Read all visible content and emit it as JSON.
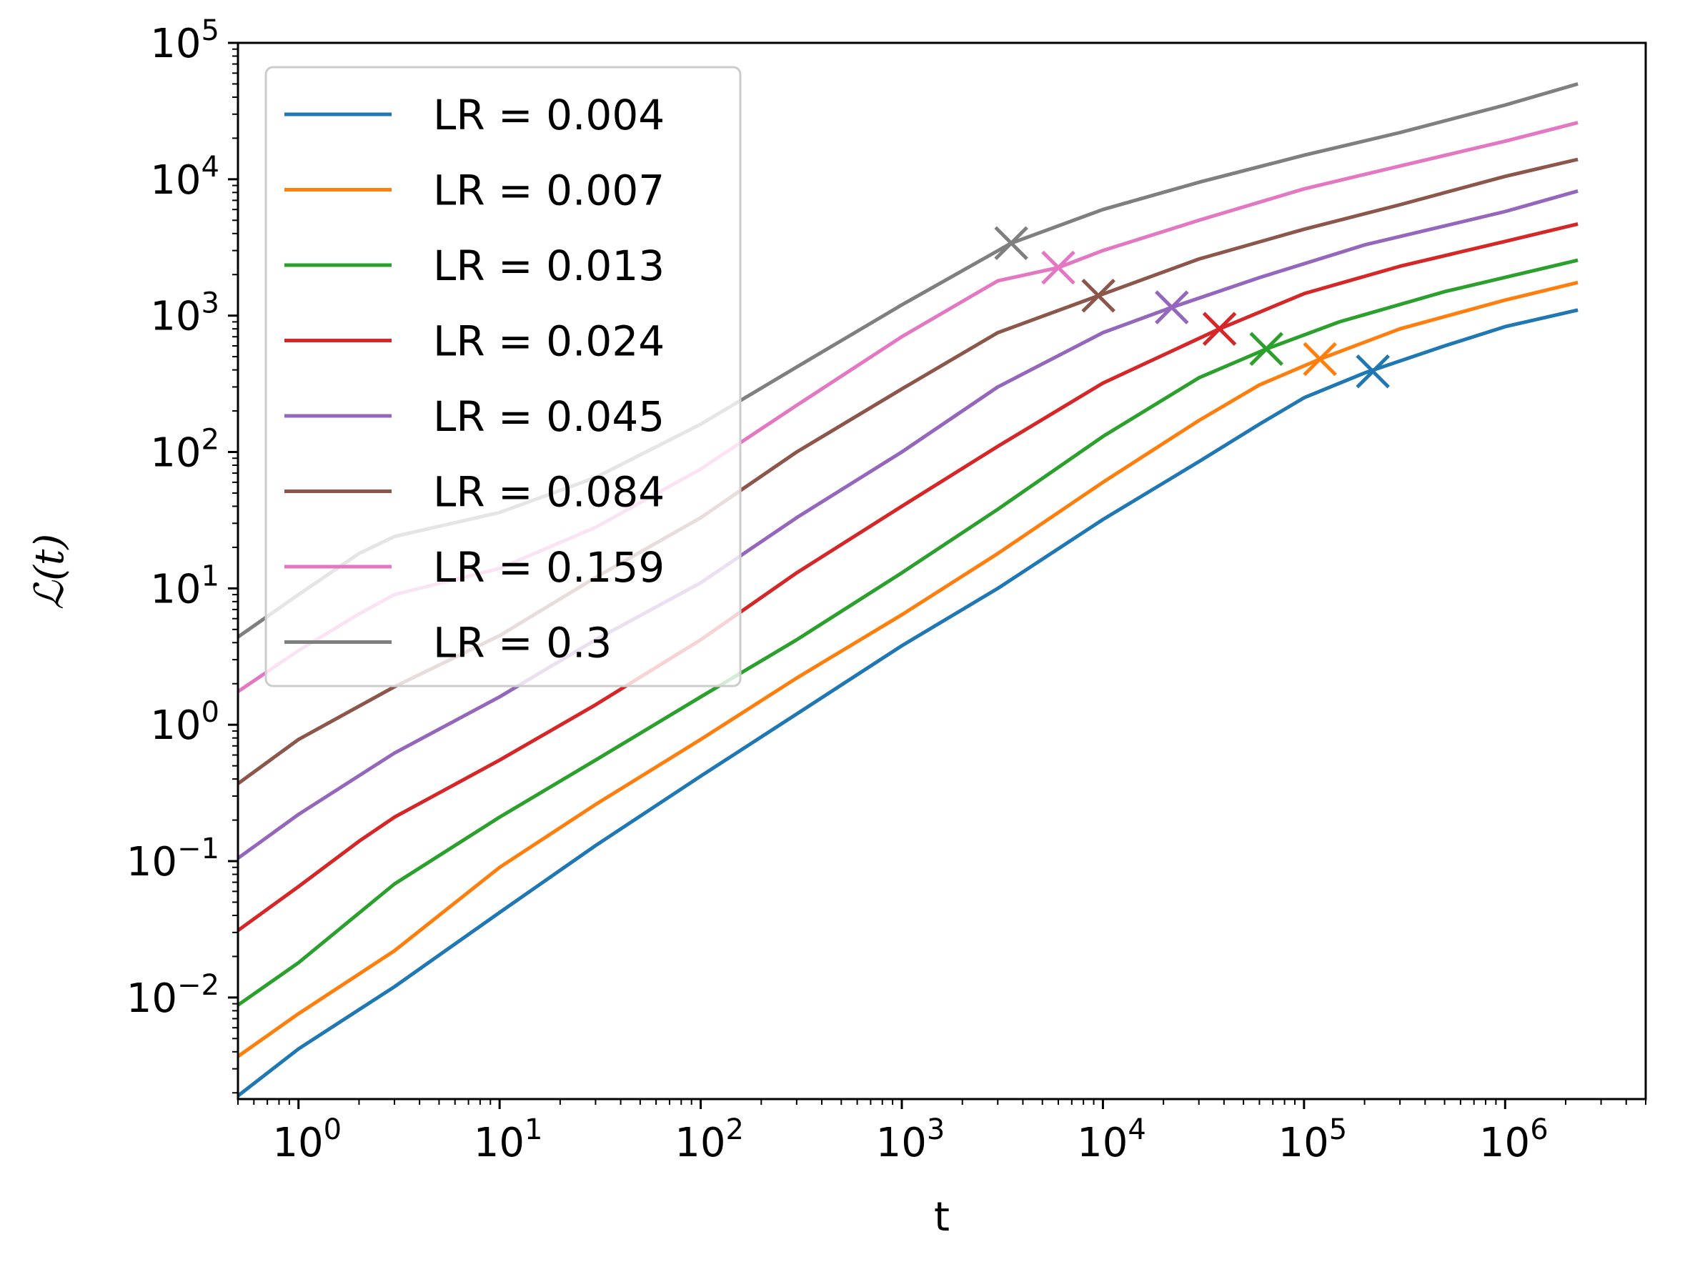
{
  "chart_data": {
    "type": "line",
    "title": "",
    "xlabel": "t",
    "ylabel": "ℒ(t)",
    "xscale": "log",
    "yscale": "log",
    "xlim": [
      0.5,
      5000000
    ],
    "ylim": [
      0.0018,
      100000
    ],
    "grid": false,
    "legend_position": "top-left",
    "x_ticks": [
      {
        "value": 1,
        "base": "10",
        "exp": "0"
      },
      {
        "value": 10,
        "base": "10",
        "exp": "1"
      },
      {
        "value": 100,
        "base": "10",
        "exp": "2"
      },
      {
        "value": 1000,
        "base": "10",
        "exp": "3"
      },
      {
        "value": 10000,
        "base": "10",
        "exp": "4"
      },
      {
        "value": 100000,
        "base": "10",
        "exp": "5"
      },
      {
        "value": 1000000,
        "base": "10",
        "exp": "6"
      }
    ],
    "y_ticks": [
      {
        "value": 0.01,
        "base": "10",
        "exp": "−2"
      },
      {
        "value": 0.1,
        "base": "10",
        "exp": "−1"
      },
      {
        "value": 1,
        "base": "10",
        "exp": "0"
      },
      {
        "value": 10,
        "base": "10",
        "exp": "1"
      },
      {
        "value": 100,
        "base": "10",
        "exp": "2"
      },
      {
        "value": 1000,
        "base": "10",
        "exp": "3"
      },
      {
        "value": 10000,
        "base": "10",
        "exp": "4"
      },
      {
        "value": 100000,
        "base": "10",
        "exp": "5"
      }
    ],
    "series": [
      {
        "name": "LR = 0.004",
        "color": "#1f77b4",
        "x": [
          0.5,
          1,
          3,
          10,
          30,
          100,
          300,
          1000,
          3000,
          10000,
          30000,
          60000,
          100000,
          200000,
          500000,
          1000000,
          2300000
        ],
        "y": [
          0.0019,
          0.0042,
          0.012,
          0.042,
          0.13,
          0.42,
          1.2,
          3.8,
          10,
          32,
          85,
          160,
          250,
          380,
          600,
          830,
          1100
        ],
        "marker": {
          "x": 220000,
          "y": 390
        }
      },
      {
        "name": "LR = 0.007",
        "color": "#ff7f0e",
        "x": [
          0.5,
          1,
          3,
          10,
          30,
          100,
          300,
          1000,
          3000,
          10000,
          30000,
          60000,
          120000,
          300000,
          1000000,
          2300000
        ],
        "y": [
          0.0037,
          0.0076,
          0.022,
          0.09,
          0.26,
          0.78,
          2.2,
          6.4,
          18,
          60,
          170,
          310,
          480,
          800,
          1300,
          1750
        ],
        "marker": {
          "x": 120000,
          "y": 480
        }
      },
      {
        "name": "LR = 0.013",
        "color": "#2ca02c",
        "x": [
          0.5,
          1,
          3,
          10,
          30,
          100,
          300,
          1000,
          3000,
          10000,
          30000,
          65000,
          150000,
          500000,
          2300000
        ],
        "y": [
          0.0088,
          0.018,
          0.068,
          0.21,
          0.55,
          1.6,
          4.2,
          13,
          38,
          130,
          350,
          570,
          900,
          1500,
          2550
        ],
        "marker": {
          "x": 65000,
          "y": 570
        }
      },
      {
        "name": "LR = 0.024",
        "color": "#d62728",
        "x": [
          0.5,
          1,
          2,
          3,
          10,
          30,
          100,
          300,
          1000,
          3000,
          10000,
          38000,
          100000,
          300000,
          1000000,
          2300000
        ],
        "y": [
          0.031,
          0.065,
          0.14,
          0.21,
          0.55,
          1.4,
          4.2,
          13,
          40,
          110,
          320,
          800,
          1450,
          2300,
          3500,
          4700
        ],
        "marker": {
          "x": 38000,
          "y": 800
        }
      },
      {
        "name": "LR = 0.045",
        "color": "#9467bd",
        "x": [
          0.5,
          1,
          3,
          10,
          30,
          100,
          300,
          1000,
          3000,
          10000,
          22000,
          60000,
          200000,
          1000000,
          2300000
        ],
        "y": [
          0.105,
          0.22,
          0.62,
          1.6,
          4.2,
          11,
          33,
          100,
          300,
          750,
          1150,
          1900,
          3300,
          5800,
          8200
        ],
        "marker": {
          "x": 22000,
          "y": 1150
        }
      },
      {
        "name": "LR = 0.084",
        "color": "#8c564b",
        "x": [
          0.5,
          1,
          3,
          10,
          30,
          100,
          300,
          1000,
          3000,
          9500,
          30000,
          100000,
          300000,
          1000000,
          2300000
        ],
        "y": [
          0.37,
          0.78,
          1.9,
          4.5,
          12,
          33,
          100,
          290,
          750,
          1400,
          2600,
          4300,
          6500,
          10500,
          14000
        ],
        "marker": {
          "x": 9500,
          "y": 1400
        }
      },
      {
        "name": "LR = 0.159",
        "color": "#e377c2",
        "x": [
          0.5,
          1,
          2,
          3,
          10,
          30,
          100,
          300,
          1000,
          3000,
          6000,
          10000,
          30000,
          100000,
          300000,
          1000000,
          2300000
        ],
        "y": [
          1.75,
          3.5,
          6.5,
          9,
          14,
          28,
          75,
          220,
          700,
          1800,
          2250,
          3000,
          5000,
          8500,
          12500,
          19000,
          26000
        ],
        "marker": {
          "x": 6000,
          "y": 2250
        }
      },
      {
        "name": "LR = 0.3",
        "color": "#7f7f7f",
        "x": [
          0.5,
          1,
          2,
          3,
          10,
          30,
          100,
          300,
          1000,
          3500,
          10000,
          30000,
          100000,
          300000,
          1000000,
          2300000
        ],
        "y": [
          4.4,
          9,
          18,
          24,
          36,
          65,
          160,
          420,
          1200,
          3400,
          6000,
          9500,
          15000,
          22000,
          35000,
          50000
        ],
        "marker": {
          "x": 3500,
          "y": 3400
        }
      }
    ]
  }
}
